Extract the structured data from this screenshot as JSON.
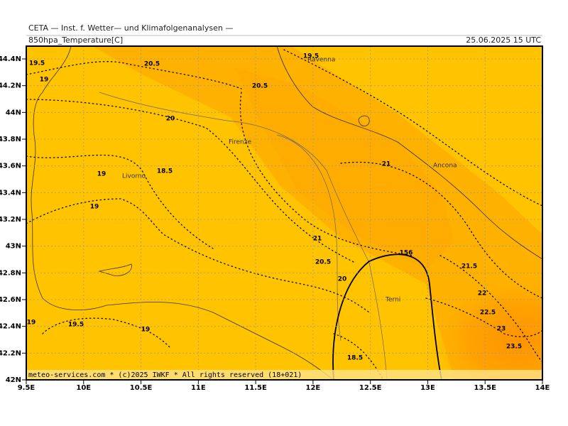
{
  "header": {
    "line1": "CETA — Inst. f. Wetter— und Klimafolgenanalysen —",
    "left": "850hpa_Temperature[C]",
    "right": "25.06.2025 15 UTC"
  },
  "lat_ticks": [
    "44.4N",
    "44.2N",
    "44N",
    "43.8N",
    "43.6N",
    "43.4N",
    "43.2N",
    "43N",
    "42.8N",
    "42.6N",
    "42.4N",
    "42.2N",
    "42N"
  ],
  "lon_ticks": [
    "9.5E",
    "10E",
    "10.5E",
    "11E",
    "11.5E",
    "12E",
    "12.5E",
    "13E",
    "13.5E",
    "14E"
  ],
  "contour_labels": [
    "19.5",
    "20.5",
    "19.5",
    "19",
    "20.5",
    "20",
    "19",
    "18.5",
    "21",
    "19",
    "21",
    "156",
    "20.5",
    "21.5",
    "20",
    "22",
    "22.5",
    "19",
    "19.5",
    "19",
    "23",
    "23.5",
    "18.5"
  ],
  "cities": [
    "Ravenna",
    "Firenze",
    "Livorno",
    "Ancona",
    "Terni"
  ],
  "footer": "meteo-services.com * (c)2025 IWKF * All rights reserved (18+021)"
}
